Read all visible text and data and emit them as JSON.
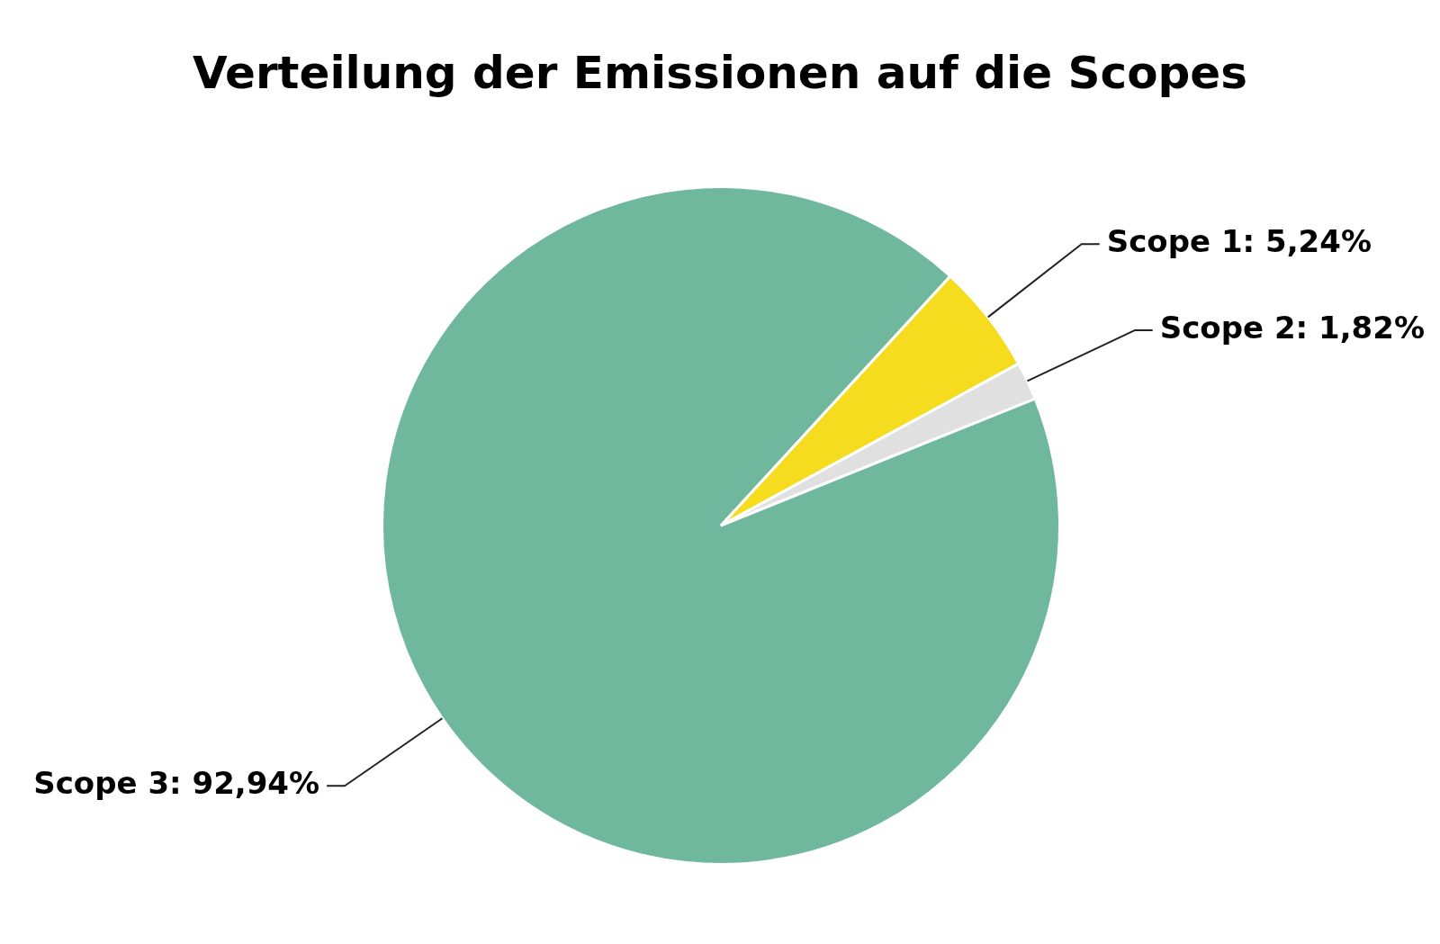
{
  "chart_data": {
    "type": "pie",
    "title": "Verteilung der Emissionen auf die Scopes",
    "categories": [
      "Scope 1",
      "Scope 2",
      "Scope 3"
    ],
    "values": [
      5.24,
      1.82,
      92.94
    ],
    "colors": [
      "#f5dc1f",
      "#e0e0e0",
      "#6fb89e"
    ],
    "value_labels": [
      "5,24%",
      "1,82%",
      "92,94%"
    ],
    "legend": false
  }
}
